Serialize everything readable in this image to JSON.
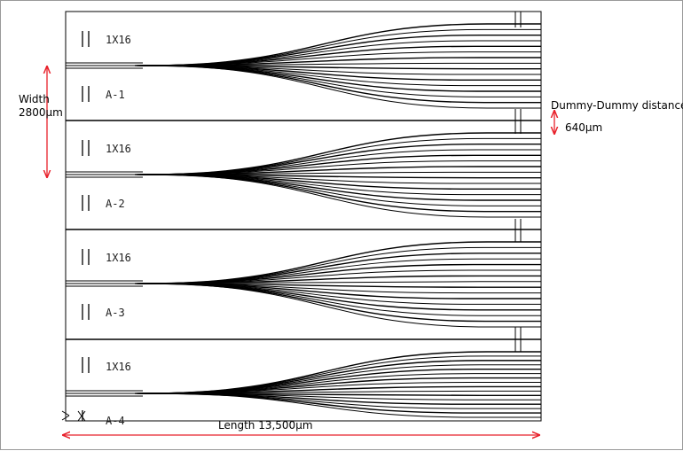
{
  "chips": [
    {
      "type_label": "1X16",
      "id_label": "A-1"
    },
    {
      "type_label": "1X16",
      "id_label": "A-2"
    },
    {
      "type_label": "1X16",
      "id_label": "A-3"
    },
    {
      "type_label": "1X16",
      "id_label": "A-4"
    }
  ],
  "annotations": {
    "width_title": "Width",
    "width_value": "2800μm",
    "dummy_title": "Dummy-Dummy distance",
    "dummy_value": "640μm",
    "length_label": "Length  13,500μm"
  },
  "colors": {
    "waveguide": "#000000",
    "dimension_arrow": "#e8202a",
    "frame_border": "#9a9a9a"
  },
  "waveguide_count_per_chip": 16
}
